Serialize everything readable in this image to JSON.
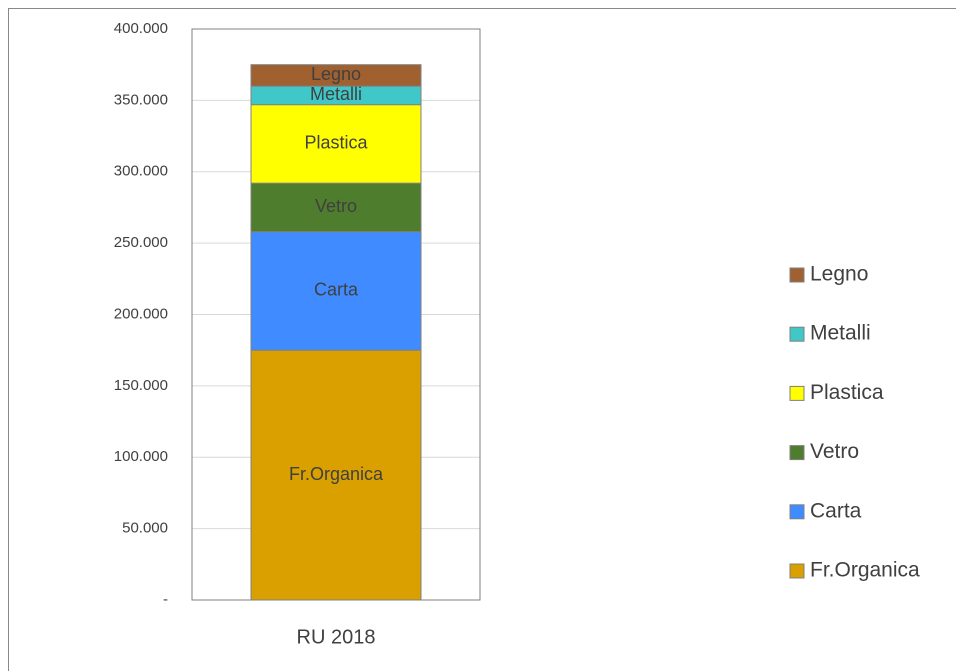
{
  "chart_data": {
    "type": "stacked_bar",
    "categories": [
      "RU 2018"
    ],
    "series": [
      {
        "name": "Fr.Organica",
        "color": "#d9a000",
        "values": [
          175000
        ]
      },
      {
        "name": "Carta",
        "color": "#3f8bff",
        "values": [
          83000
        ]
      },
      {
        "name": "Vetro",
        "color": "#4e7d2e",
        "values": [
          34000
        ]
      },
      {
        "name": "Plastica",
        "color": "#ffff00",
        "values": [
          55000
        ]
      },
      {
        "name": "Metalli",
        "color": "#40c8c8",
        "values": [
          13000
        ]
      },
      {
        "name": "Legno",
        "color": "#a0602f",
        "values": [
          15000
        ]
      }
    ],
    "ylim": [
      0,
      400000
    ],
    "yticks": [
      {
        "value": 0,
        "label": "-"
      },
      {
        "value": 50000,
        "label": "50.000"
      },
      {
        "value": 100000,
        "label": "100.000"
      },
      {
        "value": 150000,
        "label": "150.000"
      },
      {
        "value": 200000,
        "label": "200.000"
      },
      {
        "value": 250000,
        "label": "250.000"
      },
      {
        "value": 300000,
        "label": "300.000"
      },
      {
        "value": 350000,
        "label": "350.000"
      },
      {
        "value": 400000,
        "label": "400.000"
      }
    ],
    "grid": true,
    "legend": "right"
  }
}
